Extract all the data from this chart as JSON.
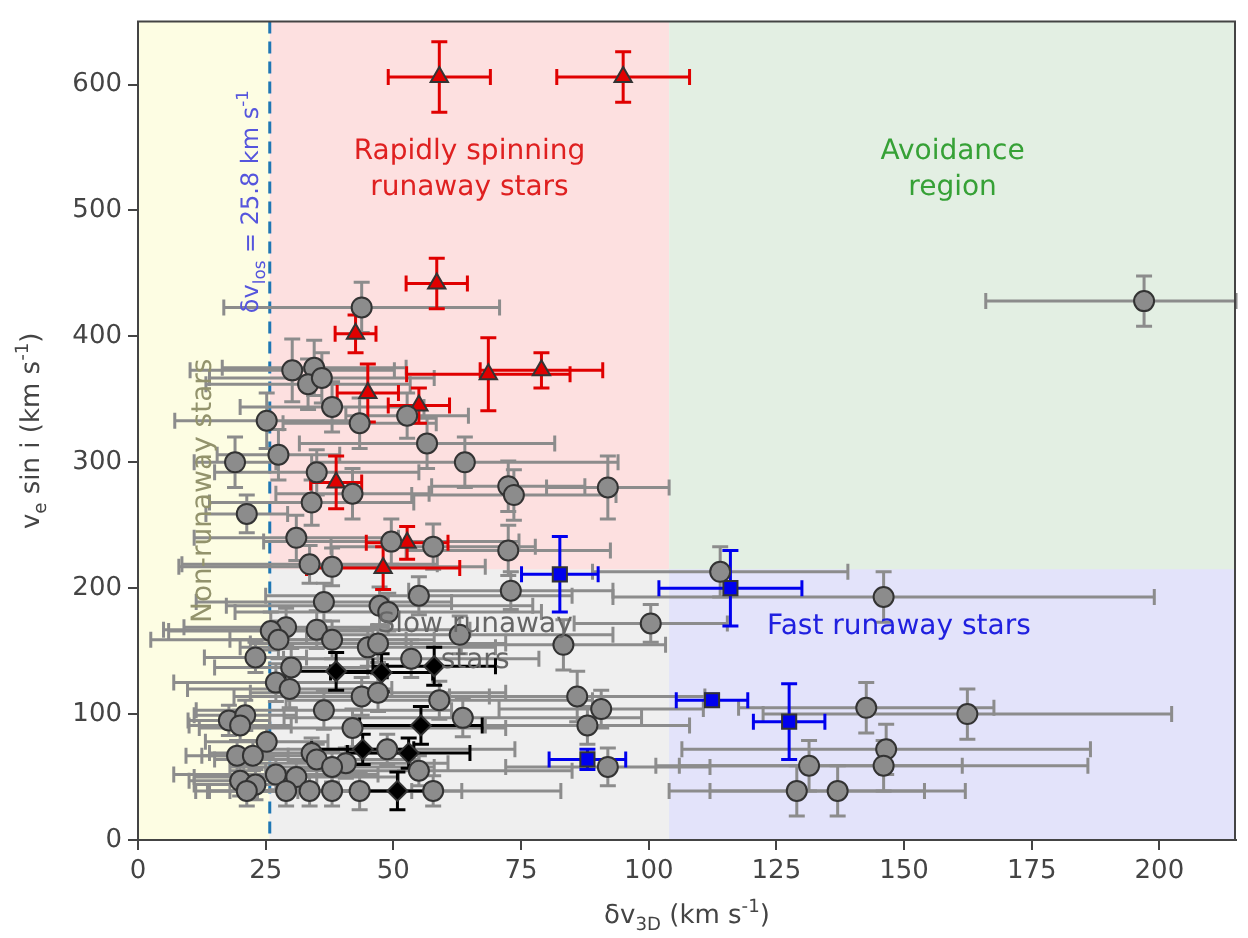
{
  "chart_data": {
    "type": "scatter",
    "xlabel": "δv$_{3D}$ (km s$^{-1}$)",
    "ylabel": "v$_{e}$ sin i (km s$^{-1}$)",
    "xlim": [
      0,
      215
    ],
    "ylim": [
      0,
      650
    ],
    "xticks": [
      0,
      25,
      50,
      75,
      100,
      125,
      150,
      175,
      200
    ],
    "yticks": [
      0,
      100,
      200,
      300,
      400,
      500,
      600
    ],
    "legend": false,
    "bands": [
      {
        "axis": "x",
        "from": 0,
        "to": 25.8,
        "color": "#fdfde3",
        "label": "Non-runaway stars"
      },
      {
        "axis": "x",
        "from": 25.8,
        "to": 104,
        "color": "#fde0e0",
        "label": "Rapidly spinning\nrunaway stars"
      },
      {
        "axis": "y",
        "from": 0,
        "to": 215,
        "color": "#efefef"
      },
      {
        "axis": "x",
        "from": 104,
        "to": 215,
        "color": "#e3efe3",
        "label": "Avoidance\nregion"
      },
      {
        "axis": "y",
        "from": 0,
        "to": 215,
        "color": "#e3e3fa"
      }
    ],
    "annotations": [
      {
        "text": "Slow runaway\nstars",
        "x": 66,
        "y": 157
      },
      {
        "text": "Fast runaway stars",
        "x": 149,
        "y": 169
      }
    ],
    "ref_lines": [
      {
        "axis": "x",
        "value": 25.8,
        "label": "δv$_{los}$ = 25.8 km s$^{-1}$",
        "color": "#1f77b4",
        "line_style": "dashed"
      }
    ],
    "series": [
      {
        "marker": "circle",
        "color": "#8c8c8c",
        "x": [
          43.8,
          30.2,
          34.5,
          33.3,
          36,
          38,
          25.2,
          43.4,
          52.7,
          56.6,
          19,
          27.5,
          64,
          35,
          92,
          42,
          72.5,
          73.6,
          21.3,
          34,
          31,
          49.6,
          57.8,
          72.5,
          33.6,
          38,
          73,
          55,
          36.4,
          47.3,
          49,
          29,
          26,
          35,
          38,
          27.5,
          45,
          47,
          63,
          83.3,
          100.4,
          23,
          30,
          53.5,
          27,
          29.7,
          43.8,
          47,
          59,
          86,
          36.4,
          17.8,
          21,
          20,
          63.6,
          42,
          90.7,
          88,
          25.2,
          19.4,
          22.5,
          34,
          35,
          40.7,
          38,
          48.8,
          55,
          27,
          31,
          20,
          23,
          21.3,
          29,
          33.6,
          38,
          43.4,
          57.8,
          92,
          114,
          146,
          142.6,
          162.4,
          146.5,
          146,
          131.4,
          129,
          137,
          197
        ],
        "values": [
          423,
          373,
          375,
          362,
          367,
          344,
          333,
          331,
          337,
          315,
          300,
          306,
          300,
          292,
          280,
          275,
          281,
          274,
          259,
          268,
          240,
          237,
          233,
          230,
          219,
          217,
          198,
          194,
          189,
          186,
          181,
          169,
          166,
          167,
          159,
          159,
          153,
          156,
          163,
          155,
          172,
          145,
          137,
          144,
          125,
          120,
          114,
          117,
          111,
          114,
          103,
          95,
          99,
          91,
          97,
          89,
          104,
          91,
          78,
          67,
          67,
          69,
          64,
          61,
          58,
          72,
          55,
          52,
          50,
          47,
          44,
          39,
          39,
          39,
          39,
          39,
          39,
          58,
          213,
          193,
          105,
          100,
          72,
          59,
          59,
          39,
          39,
          428
        ],
        "xerrors": [
          27,
          20,
          18,
          20,
          22,
          18,
          18,
          15,
          12,
          25,
          8,
          12,
          30,
          20,
          12,
          15,
          15,
          20,
          8,
          20,
          20,
          25,
          20,
          20,
          25,
          30,
          20,
          30,
          25,
          30,
          30,
          20,
          20,
          30,
          20,
          25,
          25,
          25,
          30,
          20,
          15,
          10,
          15,
          25,
          20,
          20,
          25,
          25,
          30,
          25,
          25,
          8,
          10,
          10,
          35,
          30,
          20,
          20,
          12,
          10,
          10,
          20,
          20,
          20,
          20,
          25,
          30,
          20,
          20,
          10,
          12,
          10,
          15,
          20,
          20,
          20,
          25,
          20,
          25,
          53,
          25,
          40,
          40,
          40,
          30,
          25,
          25,
          [
            166,
            215
          ]
        ],
        "errors": [
          20,
          25,
          22,
          20,
          20,
          20,
          22,
          20,
          18,
          20,
          20,
          20,
          20,
          18,
          25,
          20,
          20,
          20,
          15,
          18,
          18,
          18,
          18,
          20,
          15,
          15,
          15,
          15,
          15,
          15,
          15,
          15,
          15,
          15,
          15,
          15,
          15,
          15,
          15,
          20,
          15,
          12,
          15,
          15,
          15,
          15,
          15,
          15,
          15,
          20,
          15,
          12,
          12,
          12,
          15,
          15,
          15,
          15,
          12,
          12,
          12,
          12,
          12,
          12,
          12,
          12,
          12,
          12,
          12,
          12,
          12,
          12,
          12,
          12,
          12,
          15,
          12,
          15,
          20,
          20,
          20,
          20,
          20,
          20,
          20,
          20,
          20,
          20
        ]
      },
      {
        "marker": "triangle",
        "color": "#e00000",
        "x": [
          59,
          95,
          58.5,
          42.6,
          45,
          55,
          68.6,
          79,
          38.8,
          52.7,
          48
        ],
        "values": [
          606,
          606,
          442,
          402,
          355,
          345,
          370,
          373,
          284,
          236,
          216
        ],
        "xerrors": [
          10,
          13,
          6,
          4,
          6,
          6,
          16,
          12,
          5,
          8,
          15
        ],
        "errors": [
          28,
          20,
          20,
          15,
          23,
          14,
          29,
          14,
          21,
          13,
          17
        ]
      },
      {
        "marker": "square",
        "color": "#0000ee",
        "x": [
          82.6,
          88,
          116,
          112.4,
          127.5
        ],
        "values": [
          211,
          64,
          200,
          111,
          94
        ],
        "xerrors": [
          7.5,
          7.5,
          14,
          7,
          7
        ],
        "errors": [
          30,
          8,
          30,
          5,
          30
        ]
      },
      {
        "marker": "diamond",
        "color": "#000000",
        "x": [
          38.8,
          47.7,
          58,
          55.4,
          44,
          53,
          50.8
        ],
        "values": [
          134,
          133,
          138,
          91,
          72,
          69,
          39
        ],
        "xerrors": [
          10,
          10,
          12,
          12,
          10,
          12,
          8
        ],
        "errors": [
          15,
          15,
          15,
          15,
          12,
          12,
          15
        ]
      }
    ]
  }
}
